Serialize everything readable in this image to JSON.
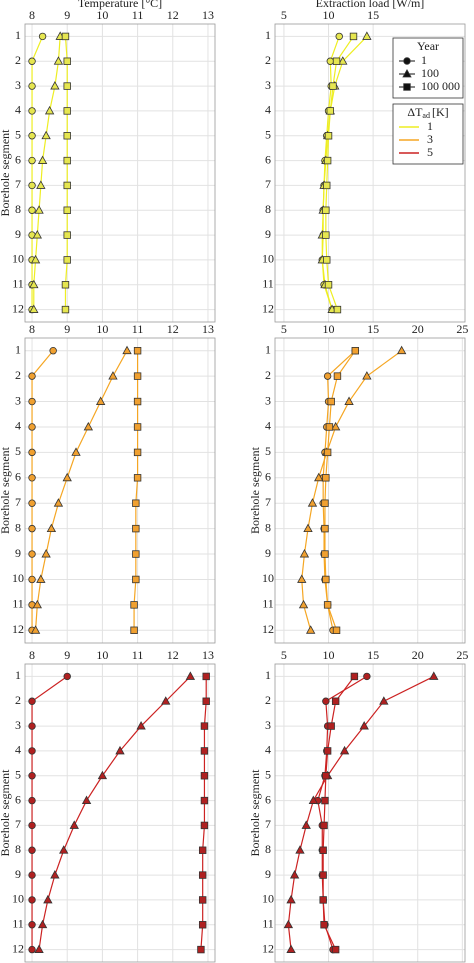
{
  "chart_data": [
    {
      "type": "line",
      "xlabel": "Temperature [°C]",
      "ylabel": "Borehole segment",
      "categories": [
        "1",
        "2",
        "3",
        "4",
        "5",
        "6",
        "7",
        "8",
        "9",
        "10",
        "11",
        "12"
      ],
      "xlim": [
        7.8,
        13.2
      ],
      "xticks": [
        8,
        9,
        10,
        11,
        12,
        13
      ],
      "grid": true,
      "color": "#eeee22",
      "marker_fill": "#e6e650",
      "series": [
        {
          "marker": "circle",
          "values": [
            8.3,
            8.0,
            8.0,
            8.0,
            8.0,
            8.0,
            8.0,
            8.0,
            8.0,
            8.0,
            8.0,
            8.0
          ]
        },
        {
          "marker": "triangle",
          "values": [
            8.8,
            8.75,
            8.65,
            8.5,
            8.4,
            8.3,
            8.25,
            8.2,
            8.15,
            8.1,
            8.05,
            8.05
          ]
        },
        {
          "marker": "square",
          "values": [
            8.95,
            9.0,
            9.0,
            9.0,
            9.0,
            9.0,
            9.0,
            9.0,
            9.0,
            9.0,
            8.95,
            8.95
          ]
        }
      ]
    },
    {
      "type": "line",
      "xlabel": "Extraction load [W/m]",
      "categories": [
        "1",
        "2",
        "3",
        "4",
        "5",
        "6",
        "7",
        "8",
        "9",
        "10",
        "11",
        "12"
      ],
      "xlim": [
        4,
        25.3
      ],
      "xticks": [
        5,
        10,
        15
      ],
      "grid": true,
      "color": "#eeee22",
      "marker_fill": "#e6e650",
      "series": [
        {
          "name": "1",
          "marker": "circle",
          "values": [
            11.2,
            10.2,
            10.3,
            10.0,
            9.8,
            9.6,
            9.5,
            9.4,
            9.4,
            9.3,
            9.5,
            10.4
          ]
        },
        {
          "name": "100",
          "marker": "triangle",
          "values": [
            14.3,
            11.6,
            10.7,
            10.2,
            9.9,
            9.7,
            9.5,
            9.4,
            9.3,
            9.3,
            9.6,
            10.4
          ]
        },
        {
          "name": "100 000",
          "marker": "square",
          "values": [
            12.8,
            10.9,
            10.5,
            10.2,
            10.0,
            9.9,
            9.8,
            9.7,
            9.7,
            9.8,
            10.0,
            11.0
          ]
        }
      ],
      "legend": {
        "title": "Year"
      },
      "legend2": {
        "title": "ΔT",
        "title_sub": "ad",
        "title_unit": "[K]",
        "entries": [
          {
            "name": "1",
            "color": "#eeee22"
          },
          {
            "name": "3",
            "color": "#f5a623"
          },
          {
            "name": "5",
            "color": "#cc2222"
          }
        ]
      }
    },
    {
      "type": "line",
      "ylabel": "Borehole segment",
      "categories": [
        "1",
        "2",
        "3",
        "4",
        "5",
        "6",
        "7",
        "8",
        "9",
        "10",
        "11",
        "12"
      ],
      "xlim": [
        7.8,
        13.2
      ],
      "xticks": [
        8,
        9,
        10,
        11,
        12,
        13
      ],
      "grid": true,
      "color": "#f5a623",
      "marker_fill": "#f0a030",
      "series": [
        {
          "marker": "circle",
          "values": [
            8.6,
            8.0,
            8.0,
            8.0,
            8.0,
            8.0,
            8.0,
            8.0,
            8.0,
            8.0,
            8.0,
            8.0
          ]
        },
        {
          "marker": "triangle",
          "values": [
            10.7,
            10.3,
            9.95,
            9.6,
            9.25,
            9.0,
            8.75,
            8.55,
            8.4,
            8.25,
            8.15,
            8.1
          ]
        },
        {
          "marker": "square",
          "values": [
            11.0,
            11.0,
            11.0,
            11.0,
            11.0,
            11.0,
            10.95,
            10.95,
            10.95,
            10.95,
            10.9,
            10.9
          ]
        }
      ]
    },
    {
      "type": "line",
      "ylabel": "Borehole segment",
      "categories": [
        "1",
        "2",
        "3",
        "4",
        "5",
        "6",
        "7",
        "8",
        "9",
        "10",
        "11",
        "12"
      ],
      "xlim": [
        4,
        25.3
      ],
      "xticks": [
        5,
        10,
        15,
        20,
        25
      ],
      "grid": true,
      "color": "#f5a623",
      "marker_fill": "#f0a030",
      "series": [
        {
          "marker": "circle",
          "values": [
            13.0,
            9.9,
            10.0,
            9.8,
            9.6,
            9.4,
            9.4,
            9.5,
            9.5,
            9.6,
            9.9,
            10.5
          ]
        },
        {
          "marker": "triangle",
          "values": [
            18.2,
            14.3,
            12.3,
            10.8,
            9.8,
            8.9,
            8.2,
            7.7,
            7.3,
            7.0,
            7.2,
            8.0
          ]
        },
        {
          "marker": "square",
          "values": [
            13.0,
            11.0,
            10.3,
            10.1,
            9.9,
            9.7,
            9.6,
            9.6,
            9.6,
            9.7,
            9.9,
            10.9
          ]
        }
      ]
    },
    {
      "type": "line",
      "ylabel": "Borehole segment",
      "categories": [
        "1",
        "2",
        "3",
        "4",
        "5",
        "6",
        "7",
        "8",
        "9",
        "10",
        "11",
        "12"
      ],
      "xlim": [
        7.8,
        13.2
      ],
      "xticks": [
        8,
        9,
        10,
        11,
        12,
        13
      ],
      "grid": true,
      "color": "#cc2222",
      "marker_fill": "#b02020",
      "series": [
        {
          "marker": "circle",
          "values": [
            9.0,
            8.0,
            8.0,
            8.0,
            8.0,
            8.0,
            8.0,
            8.0,
            8.0,
            8.0,
            8.0,
            8.0
          ]
        },
        {
          "marker": "triangle",
          "values": [
            12.5,
            11.8,
            11.1,
            10.5,
            10.0,
            9.55,
            9.2,
            8.9,
            8.65,
            8.45,
            8.3,
            8.2
          ]
        },
        {
          "marker": "square",
          "values": [
            12.95,
            12.95,
            12.9,
            12.9,
            12.9,
            12.9,
            12.9,
            12.85,
            12.85,
            12.85,
            12.85,
            12.8
          ]
        }
      ]
    },
    {
      "type": "line",
      "ylabel": "Borehole segment",
      "categories": [
        "1",
        "2",
        "3",
        "4",
        "5",
        "6",
        "7",
        "8",
        "9",
        "10",
        "11",
        "12"
      ],
      "xlim": [
        4,
        25.3
      ],
      "xticks": [
        5,
        10,
        15,
        20,
        25
      ],
      "grid": true,
      "color": "#cc2222",
      "marker_fill": "#b02020",
      "series": [
        {
          "marker": "circle",
          "values": [
            14.3,
            9.7,
            9.9,
            9.8,
            9.6,
            8.8,
            9.3,
            9.3,
            9.3,
            9.4,
            9.6,
            10.5
          ]
        },
        {
          "marker": "triangle",
          "values": [
            21.8,
            16.2,
            14.0,
            11.8,
            9.9,
            8.3,
            7.5,
            6.8,
            6.2,
            5.8,
            5.5,
            5.8
          ]
        },
        {
          "marker": "square",
          "values": [
            12.9,
            10.8,
            10.3,
            9.9,
            9.7,
            9.6,
            9.5,
            9.4,
            9.4,
            9.4,
            9.5,
            10.8
          ]
        }
      ]
    }
  ]
}
